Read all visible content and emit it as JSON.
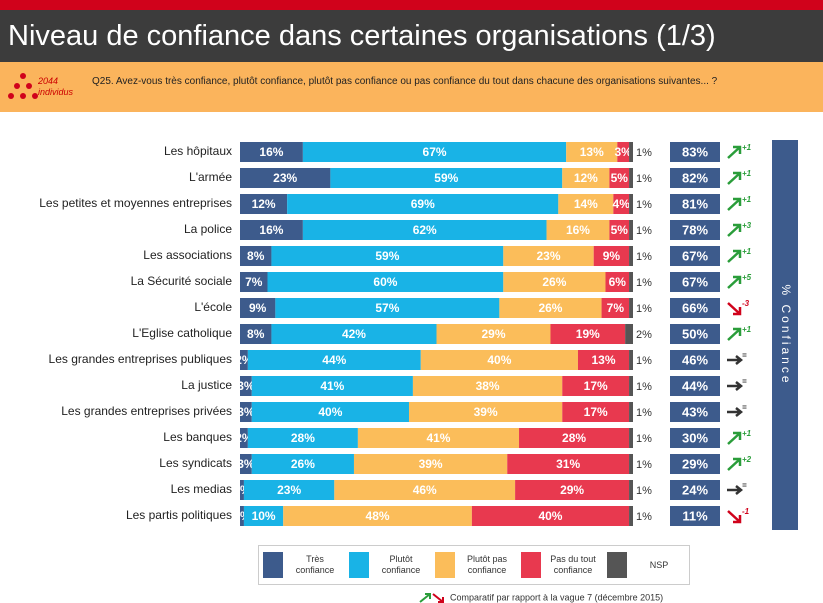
{
  "chart_data": {
    "type": "stacked-bar-horizontal",
    "title": "Niveau de confiance dans certaines organisations (1/3)",
    "sample": "2044 individus",
    "question": "Q25. Avez-vous très confiance, plutôt confiance, plutôt pas confiance ou pas confiance du tout dans chacune des organisations suivantes... ?",
    "note": "Comparatif par rapport à la vague 7 (décembre 2015)",
    "xlim": [
      0,
      100
    ],
    "categories": [
      "Les hôpitaux",
      "L'armée",
      "Les petites et moyennes entreprises",
      "La police",
      "Les associations",
      "La Sécurité sociale",
      "L'école",
      "L'Eglise catholique",
      "Les grandes entreprises publiques",
      "La justice",
      "Les grandes entreprises privées",
      "Les banques",
      "Les syndicats",
      "Les medias",
      "Les partis politiques"
    ],
    "series": [
      {
        "name": "Très confiance",
        "color": "#3d5b8c",
        "values": [
          16,
          23,
          12,
          16,
          8,
          7,
          9,
          8,
          2,
          3,
          3,
          2,
          3,
          1,
          1
        ],
        "value_labels": [
          "16%",
          "23%",
          "12%",
          "16%",
          "8%",
          "7%",
          "9%",
          "8%",
          "2%",
          "3%",
          "3%",
          "2%",
          "3%",
          "1%",
          "1%"
        ]
      },
      {
        "name": "Plutôt confiance",
        "color": "#19b3e6",
        "values": [
          67,
          59,
          69,
          62,
          59,
          60,
          57,
          42,
          44,
          41,
          40,
          28,
          26,
          23,
          10
        ],
        "value_labels": [
          "67%",
          "59%",
          "69%",
          "62%",
          "59%",
          "60%",
          "57%",
          "42%",
          "44%",
          "41%",
          "40%",
          "28%",
          "26%",
          "23%",
          "10%"
        ]
      },
      {
        "name": "Plutôt pas confiance",
        "color": "#fbbd5a",
        "values": [
          13,
          12,
          14,
          16,
          23,
          26,
          26,
          29,
          40,
          38,
          39,
          41,
          39,
          46,
          48
        ],
        "value_labels": [
          "13%",
          "12%",
          "14%",
          "16%",
          "23%",
          "26%",
          "26%",
          "29%",
          "40%",
          "38%",
          "39%",
          "41%",
          "39%",
          "46%",
          "48%"
        ]
      },
      {
        "name": "Pas du tout confiance",
        "color": "#e8394f",
        "values": [
          3,
          5,
          4,
          5,
          9,
          6,
          7,
          19,
          13,
          17,
          17,
          28,
          31,
          29,
          40
        ],
        "value_labels": [
          "3%",
          "5%",
          "4%",
          "5%",
          "9%",
          "6%",
          "7%",
          "19%",
          "13%",
          "17%",
          "17%",
          "28%",
          "31%",
          "29%",
          "40%"
        ]
      },
      {
        "name": "NSP",
        "color": "#555555",
        "values": [
          1,
          1,
          1,
          1,
          1,
          1,
          1,
          2,
          1,
          1,
          1,
          1,
          1,
          1,
          1
        ],
        "value_labels": [
          "1%",
          "1%",
          "1%",
          "1%",
          "1%",
          "1%",
          "1%",
          "2%",
          "1%",
          "1%",
          "1%",
          "1%",
          "1%",
          "1%",
          "1%"
        ]
      }
    ],
    "confidence": {
      "name": "% Confiance",
      "color": "#3d5b8c",
      "values": [
        83,
        82,
        81,
        78,
        67,
        67,
        66,
        50,
        46,
        44,
        43,
        30,
        29,
        24,
        11
      ],
      "value_labels": [
        "83%",
        "82%",
        "81%",
        "78%",
        "67%",
        "67%",
        "66%",
        "50%",
        "46%",
        "44%",
        "43%",
        "30%",
        "29%",
        "24%",
        "11%"
      ]
    },
    "changes": [
      "+1",
      "+1",
      "+1",
      "+3",
      "+1",
      "+5",
      "-3",
      "+1",
      "=",
      "=",
      "=",
      "+1",
      "+2",
      "=",
      "-1"
    ]
  }
}
